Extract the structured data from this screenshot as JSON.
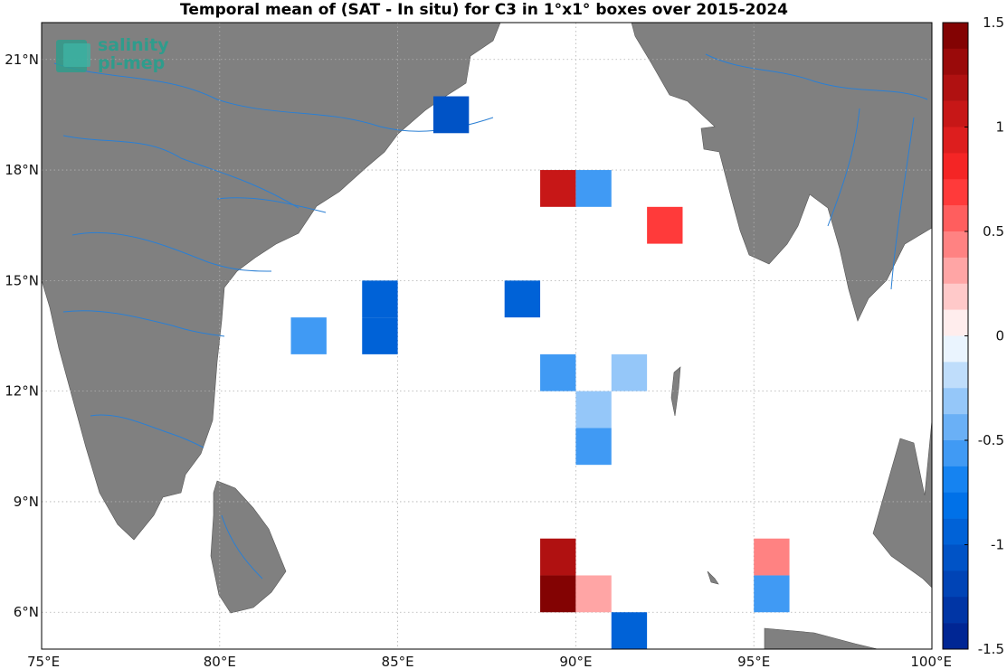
{
  "title": "Temporal mean of (SAT - In situ) for C3 in 1°x1° boxes over 2015-2024",
  "logo": {
    "line1": "salinity",
    "line2": "pi-mep",
    "color": "#2f9c8c"
  },
  "colors": {
    "land": "#808080",
    "ocean": "#ffffff",
    "rivers": "#2a7fd4",
    "grid": "#b0b0b0"
  },
  "axes": {
    "lon_ticks": [
      "75°E",
      "80°E",
      "85°E",
      "90°E",
      "95°E",
      "100°E"
    ],
    "lat_ticks": [
      "6°N",
      "9°N",
      "12°N",
      "15°N",
      "18°N",
      "21°N"
    ]
  },
  "colorbar": {
    "ticks": [
      "1.5",
      "1",
      "0.5",
      "0",
      "-0.5",
      "-1",
      "-1.5"
    ],
    "range": [
      -1.5,
      1.5
    ],
    "levels": 24
  },
  "chart_data": {
    "type": "heatmap",
    "title": "Temporal mean of (SAT - In situ) for C3 in 1°x1° boxes over 2015-2024",
    "x_range": [
      75,
      100
    ],
    "y_range": [
      5,
      22
    ],
    "value_range": [
      -1.5,
      1.5
    ],
    "cells": [
      {
        "lon": 86.5,
        "lat": 19.5,
        "value": -1.1
      },
      {
        "lon": 89.5,
        "lat": 17.5,
        "value": 1.0
      },
      {
        "lon": 90.5,
        "lat": 17.5,
        "value": -0.6
      },
      {
        "lon": 92.5,
        "lat": 16.5,
        "value": 0.7
      },
      {
        "lon": 84.5,
        "lat": 14.5,
        "value": -0.95
      },
      {
        "lon": 84.5,
        "lat": 13.5,
        "value": -0.95
      },
      {
        "lon": 88.5,
        "lat": 14.5,
        "value": -1.0
      },
      {
        "lon": 82.5,
        "lat": 13.5,
        "value": -0.55
      },
      {
        "lon": 89.5,
        "lat": 12.5,
        "value": -0.55
      },
      {
        "lon": 91.5,
        "lat": 12.5,
        "value": -0.35
      },
      {
        "lon": 90.5,
        "lat": 11.5,
        "value": -0.35
      },
      {
        "lon": 90.5,
        "lat": 10.5,
        "value": -0.55
      },
      {
        "lon": 89.5,
        "lat": 7.5,
        "value": 1.2
      },
      {
        "lon": 89.5,
        "lat": 6.5,
        "value": 1.45
      },
      {
        "lon": 90.5,
        "lat": 6.5,
        "value": 0.3
      },
      {
        "lon": 91.5,
        "lat": 5.5,
        "value": -0.95
      },
      {
        "lon": 95.5,
        "lat": 7.5,
        "value": 0.45
      },
      {
        "lon": 95.5,
        "lat": 6.5,
        "value": -0.6
      }
    ]
  }
}
